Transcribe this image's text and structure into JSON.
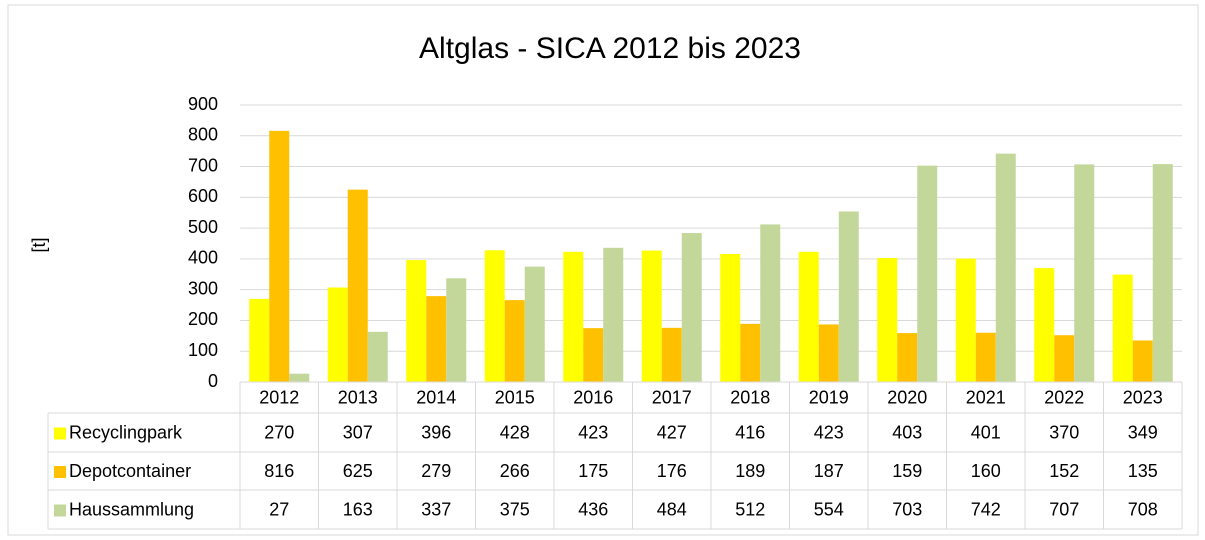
{
  "chart_data": {
    "type": "bar",
    "title": "Altglas - SICA 2012 bis 2023",
    "y_label": "[t]",
    "categories": [
      "2012",
      "2013",
      "2014",
      "2015",
      "2016",
      "2017",
      "2018",
      "2019",
      "2020",
      "2021",
      "2022",
      "2023"
    ],
    "series": [
      {
        "name": "Recyclingpark",
        "color": "#ffff00",
        "values": [
          270,
          307,
          396,
          428,
          423,
          427,
          416,
          423,
          403,
          401,
          370,
          349
        ]
      },
      {
        "name": "Depotcontainer",
        "color": "#ffc000",
        "values": [
          816,
          625,
          279,
          266,
          175,
          176,
          189,
          187,
          159,
          160,
          152,
          135
        ]
      },
      {
        "name": "Haussammlung",
        "color": "#c4d79b",
        "values": [
          27,
          163,
          337,
          375,
          436,
          484,
          512,
          554,
          703,
          742,
          707,
          708
        ]
      }
    ],
    "ylim": [
      0,
      900
    ],
    "yticks": [
      0,
      100,
      200,
      300,
      400,
      500,
      600,
      700,
      800,
      900
    ],
    "grid": true
  }
}
